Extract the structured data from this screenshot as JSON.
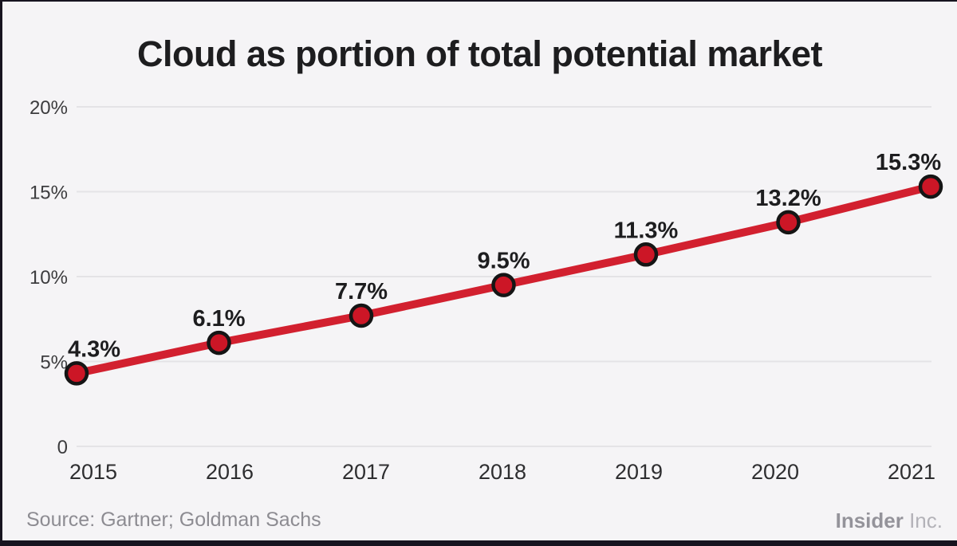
{
  "title": "Cloud as portion of total potential market",
  "source_note": "Source: Gartner; Goldman Sachs",
  "brand": {
    "name": "Insider",
    "suffix": " Inc."
  },
  "colors": {
    "background": "#f5f4f6",
    "frame": "#17141f",
    "line": "#d2202f",
    "marker_fill": "#cc1626",
    "marker_stroke": "#151515",
    "gridline": "#e4e3e6",
    "title_text": "#1d1d1f",
    "axis_text": "#3c3c3e",
    "source_text": "#8d8c92"
  },
  "chart_data": {
    "type": "line",
    "title": "Cloud as portion of total potential market",
    "categories": [
      "2015",
      "2016",
      "2017",
      "2018",
      "2019",
      "2020",
      "2021"
    ],
    "values": [
      4.3,
      6.1,
      7.7,
      9.5,
      11.3,
      13.2,
      15.3
    ],
    "point_labels": [
      "4.3%",
      "6.1%",
      "7.7%",
      "9.5%",
      "11.3%",
      "13.2%",
      "15.3%"
    ],
    "xlabel": "",
    "ylabel": "",
    "ylim": [
      0,
      20
    ],
    "y_ticks": [
      {
        "value": 0,
        "label": "0"
      },
      {
        "value": 5,
        "label": "5%"
      },
      {
        "value": 10,
        "label": "10%"
      },
      {
        "value": 15,
        "label": "15%"
      },
      {
        "value": 20,
        "label": "20%"
      }
    ],
    "grid": true,
    "legend": "none"
  }
}
